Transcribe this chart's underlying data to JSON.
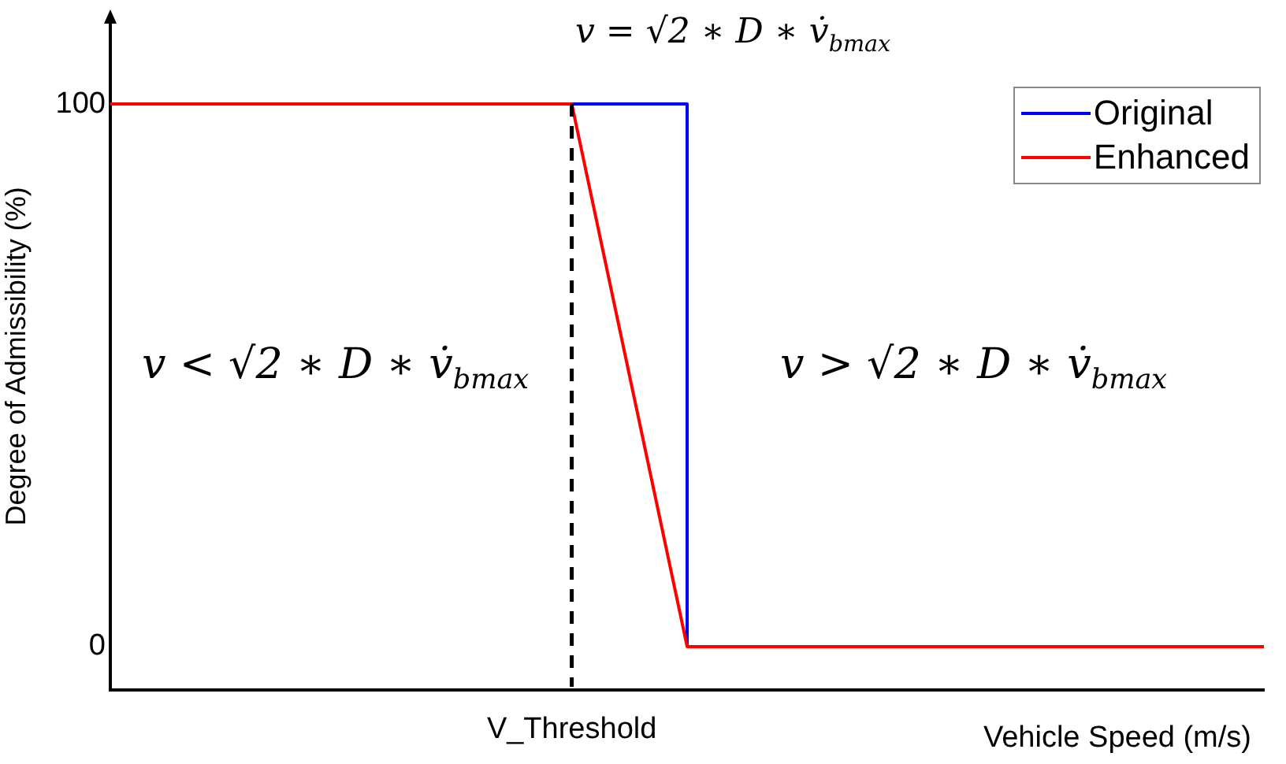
{
  "chart_data": {
    "type": "line",
    "xlabel": "Vehicle Speed (m/s)",
    "ylabel": "Degree of Admissibility (%)",
    "categories": [
      null,
      null,
      null,
      null,
      "V_Threshold",
      null,
      null,
      null,
      null,
      null,
      null
    ],
    "ylim": [
      -8,
      115
    ],
    "yticks": [
      0,
      100
    ],
    "grid": false,
    "legend": "top right",
    "marker": "none",
    "line_style": "solid",
    "series": [
      {
        "name": "Original",
        "type": "step",
        "color": "#0000ff",
        "values": [
          null,
          null,
          null,
          null,
          100,
          0,
          null,
          null,
          null,
          null,
          null
        ]
      },
      {
        "name": "Enhanced",
        "color": "#ff0000",
        "values": [
          100,
          100,
          100,
          100,
          100,
          0,
          0,
          0,
          0,
          0,
          0
        ]
      }
    ],
    "ref_lines": [
      {
        "axis": "x",
        "value": "V_Threshold",
        "color": "#000000",
        "line_style": "dashed"
      }
    ],
    "annotations": [
      "v = √2 ∗ D ∗ v̇$_{bmax}$",
      "v < √2 ∗ D ∗ v̇$_{bmax}$",
      "v > √2 ∗ D ∗ v̇$_{bmax}$"
    ]
  }
}
